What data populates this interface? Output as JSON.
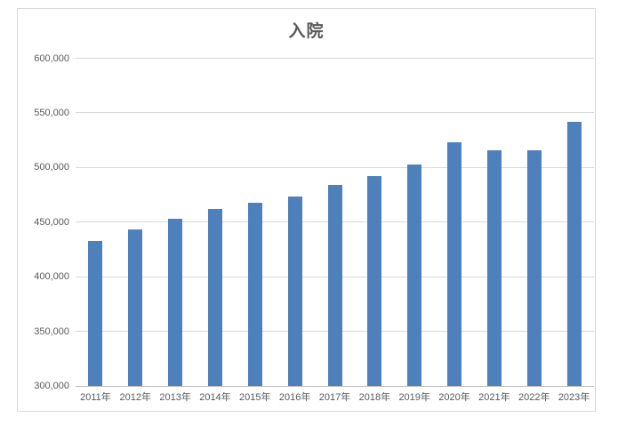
{
  "chart_data": {
    "type": "bar",
    "title": "入院",
    "categories": [
      "2011年",
      "2012年",
      "2013年",
      "2014年",
      "2015年",
      "2016年",
      "2017年",
      "2018年",
      "2019年",
      "2020年",
      "2021年",
      "2022年",
      "2023年"
    ],
    "values": [
      433000,
      443000,
      453000,
      462000,
      468000,
      473000,
      484000,
      492000,
      503000,
      523000,
      516000,
      516000,
      542000
    ],
    "xlabel": "",
    "ylabel": "",
    "ylim": [
      300000,
      600000
    ],
    "ytick_step": 50000,
    "ytick_labels": [
      "300,000",
      "350,000",
      "400,000",
      "450,000",
      "500,000",
      "550,000",
      "600,000"
    ],
    "grid": true,
    "legend": false
  },
  "colors": {
    "bar": "#4e80bc",
    "gridline": "#d9d9d9",
    "axis_line": "#bfbfbf",
    "text": "#595959",
    "frame_border": "#d9d9d9"
  }
}
